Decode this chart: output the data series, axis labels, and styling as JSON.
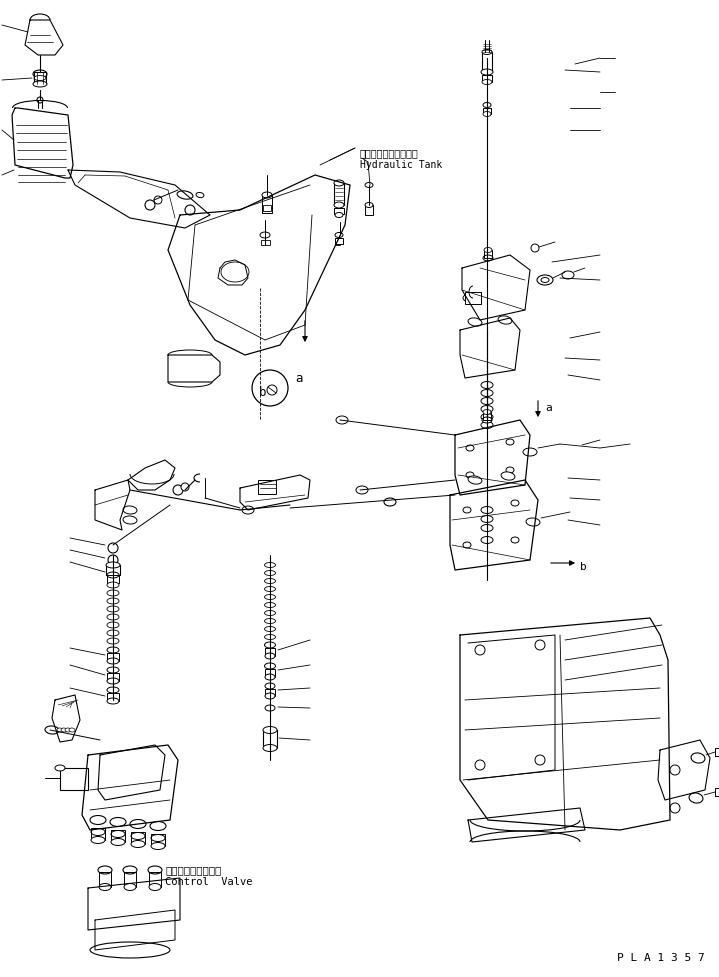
{
  "bg_color": "#ffffff",
  "line_color": "#000000",
  "label_hydraulic_jp": "ハイドロリックタンク",
  "label_hydraulic_en": "Hydraulic Tank",
  "label_control_jp": "コントロールバルブ",
  "label_control_en": "Control  Valve",
  "figsize": [
    7.19,
    9.77
  ],
  "dpi": 100
}
